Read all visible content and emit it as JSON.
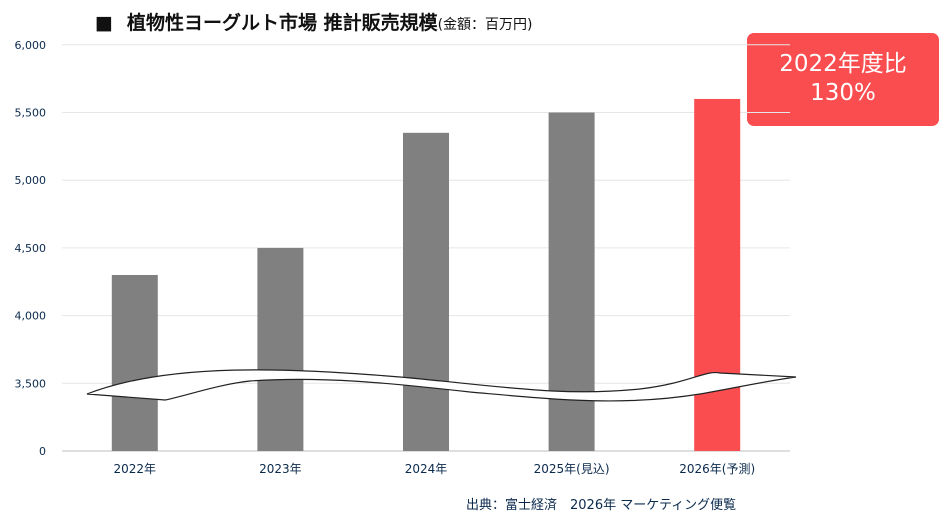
{
  "header": {
    "bullet": "■",
    "title": "植物性ヨーグルト市場 推計販売規模",
    "unit": "(金額：百万円)"
  },
  "badge": {
    "line1": "2022年度比",
    "line2": "130%"
  },
  "source": "出典：富士経済　2026年 マーケティング便覧",
  "colors": {
    "bar": "#808080",
    "highlight": "#fa4d4f",
    "axis_text": "#0b2a4d",
    "grid": "#e6e6e6"
  },
  "chart_data": {
    "type": "bar",
    "categories": [
      "2022年",
      "2023年",
      "2024年",
      "2025年(見込)",
      "2026年(予測)"
    ],
    "values": [
      4300,
      4500,
      5350,
      5500,
      5600
    ],
    "highlight_index": 4,
    "y_ticks": [
      "0",
      "3,500",
      "4,000",
      "4,500",
      "5,000",
      "5,500",
      "6,000"
    ],
    "ylim": [
      0,
      6000
    ],
    "axis_break": [
      0,
      3500
    ],
    "grid": true,
    "legend": "none"
  }
}
